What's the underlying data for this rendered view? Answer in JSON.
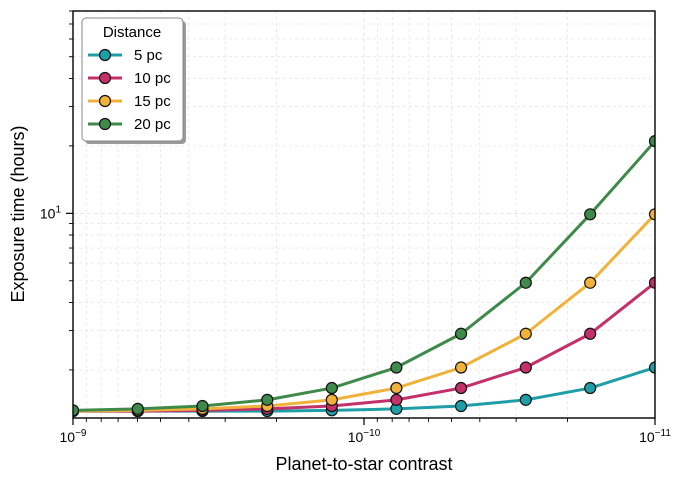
{
  "chart_data": {
    "type": "line",
    "xlabel": "Planet-to-star contrast",
    "ylabel": "Exposure time (hours)",
    "x_scale": "log",
    "y_scale": "log",
    "x_reversed": true,
    "xlim": [
      1e-09,
      1e-11
    ],
    "ylim": [
      1.22,
      80
    ],
    "x_major_ticks": [
      {
        "value": 1e-09,
        "base": "10",
        "exp": "−9"
      },
      {
        "value": 1e-10,
        "base": "10",
        "exp": "−10"
      },
      {
        "value": 1e-11,
        "base": "10",
        "exp": "−11"
      }
    ],
    "y_major_ticks": [
      {
        "value": 10,
        "base": "10",
        "exp": "1"
      }
    ],
    "grid": true,
    "legend": {
      "title": "Distance",
      "position": "upper-left"
    },
    "x": [
      1e-09,
      5.99e-10,
      3.59e-10,
      2.15e-10,
      1.29e-10,
      7.74e-11,
      4.64e-11,
      2.78e-11,
      1.67e-11,
      1e-11
    ],
    "series": [
      {
        "name": "5 pc",
        "color": "#1f9ea8",
        "values": [
          1.31,
          1.31,
          1.31,
          1.31,
          1.32,
          1.34,
          1.38,
          1.47,
          1.66,
          2.05
        ]
      },
      {
        "name": "10 pc",
        "color": "#c4306a",
        "values": [
          1.31,
          1.31,
          1.32,
          1.34,
          1.38,
          1.47,
          1.66,
          2.05,
          2.9,
          4.9
        ]
      },
      {
        "name": "15 pc",
        "color": "#f0b23a",
        "values": [
          1.31,
          1.32,
          1.34,
          1.38,
          1.47,
          1.66,
          2.05,
          2.9,
          4.9,
          9.9
        ]
      },
      {
        "name": "20 pc",
        "color": "#3f8a4a",
        "values": [
          1.32,
          1.34,
          1.38,
          1.47,
          1.66,
          2.05,
          2.9,
          4.9,
          9.9,
          21.0
        ]
      }
    ]
  }
}
